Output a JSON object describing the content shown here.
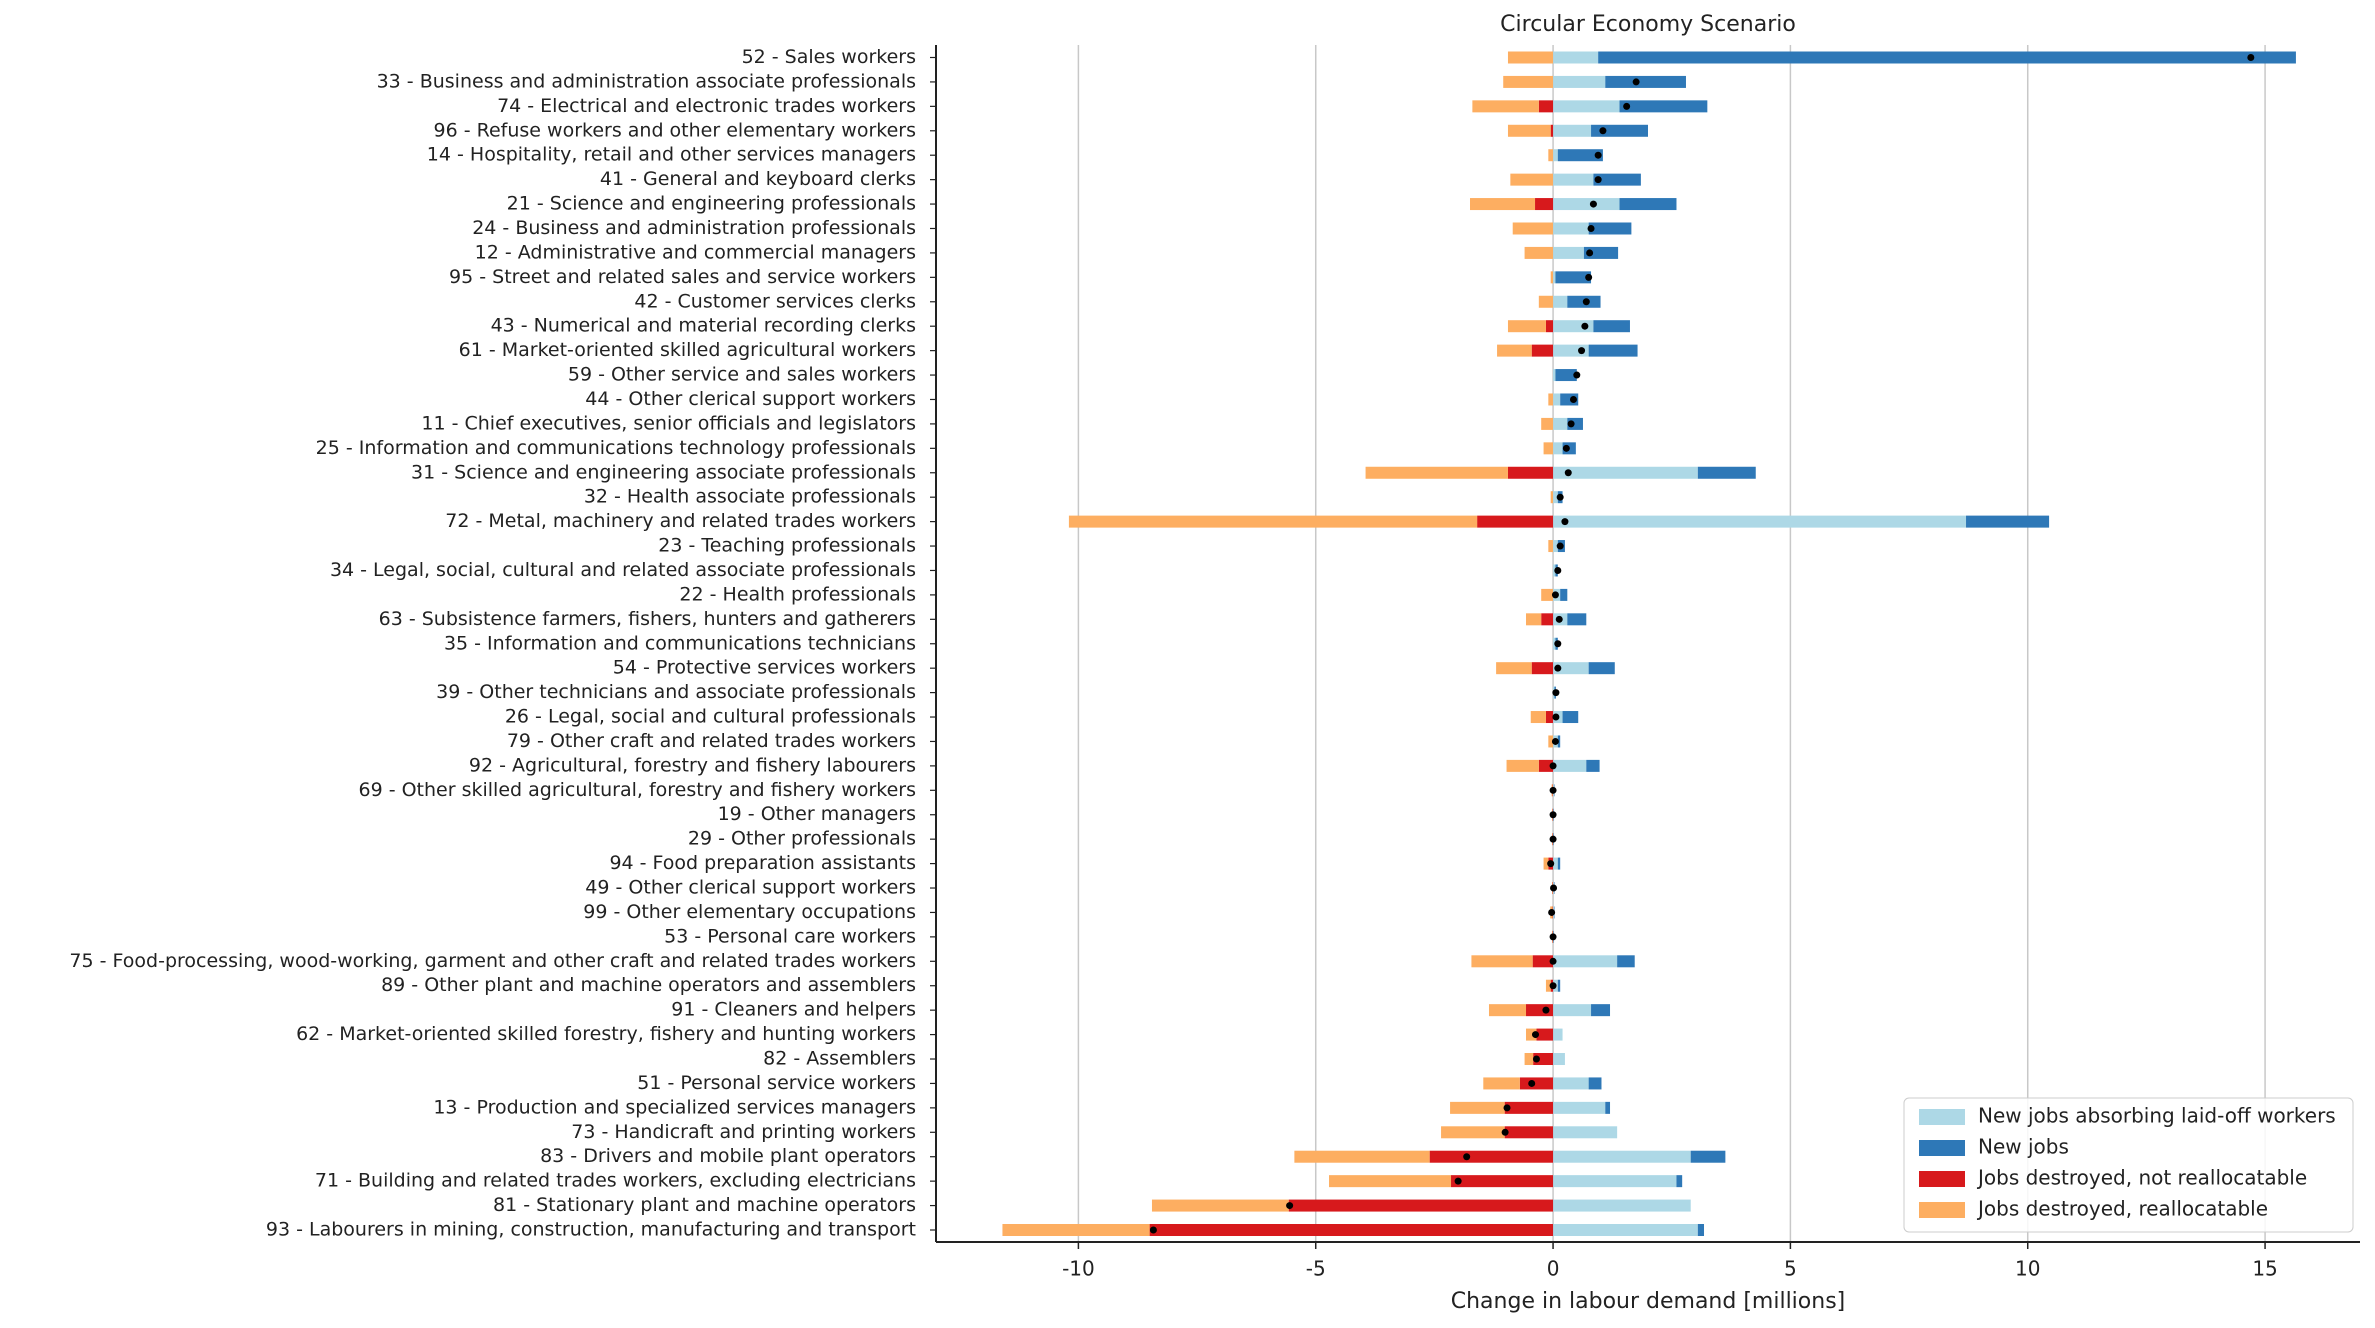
{
  "chart_data": {
    "type": "stacked-barh",
    "title": "Circular Economy Scenario",
    "xlabel": "Change in labour demand [millions]",
    "xlim": [
      -13,
      17
    ],
    "xticks": [
      -10,
      -5,
      0,
      5,
      10,
      15
    ],
    "grid": true,
    "legend_position": "lower right",
    "categories": [
      "52 - Sales workers",
      "33 - Business and administration associate professionals",
      "74 - Electrical and electronic trades workers",
      "96 - Refuse workers and other elementary workers",
      "14 - Hospitality, retail and other services managers",
      "41 - General and keyboard clerks",
      "21 - Science and engineering professionals",
      "24 - Business and administration professionals",
      "12 - Administrative and commercial managers",
      "95 - Street and related sales and service workers",
      "42 - Customer services clerks",
      "43 - Numerical and material recording clerks",
      "61 - Market-oriented skilled agricultural workers",
      "59 - Other service and sales workers",
      "44 - Other clerical support workers",
      "11 - Chief executives, senior officials and legislators",
      "25 - Information and communications technology professionals",
      "31 - Science and engineering associate professionals",
      "32 - Health associate professionals",
      "72 - Metal, machinery and related trades workers",
      "23 - Teaching professionals",
      "34 - Legal, social, cultural and related associate professionals",
      "22 - Health professionals",
      "63 - Subsistence farmers, fishers, hunters and gatherers",
      "35 - Information and communications technicians",
      "54 - Protective services workers",
      "39 - Other technicians and associate professionals",
      "26 - Legal, social and cultural professionals",
      "79 - Other craft and related trades workers",
      "92 - Agricultural, forestry and fishery labourers",
      "69 - Other skilled agricultural, forestry and fishery workers",
      "19 - Other managers",
      "29 - Other professionals",
      "94 - Food preparation assistants",
      "49 - Other clerical support workers",
      "99 - Other elementary occupations",
      "53 - Personal care workers",
      "75 - Food-processing, wood-working, garment and other craft and related trades workers",
      "89 - Other plant and machine operators and assemblers",
      "91 - Cleaners and helpers",
      "62 - Market-oriented skilled forestry, fishery and hunting workers",
      "82 - Assemblers",
      "51 - Personal service workers",
      "13 - Production and specialized services managers",
      "73 - Handicraft and printing workers",
      "83 - Drivers and mobile plant operators",
      "71 - Building and related trades workers, excluding electricians",
      "81 - Stationary plant and machine operators",
      "93 - Labourers in mining, construction, manufacturing and transport"
    ],
    "series": [
      {
        "name": "New jobs absorbing laid-off workers",
        "color": "#add8e6",
        "values": [
          0.95,
          1.1,
          1.4,
          0.8,
          0.1,
          0.85,
          1.4,
          0.75,
          0.65,
          0.05,
          0.3,
          0.85,
          0.75,
          0.05,
          0.15,
          0.3,
          0.2,
          3.05,
          0.1,
          8.7,
          0.1,
          0.05,
          0.15,
          0.3,
          0.05,
          0.75,
          0.03,
          0.2,
          0.1,
          0.7,
          0.02,
          0.01,
          0.01,
          0.1,
          0.02,
          0.02,
          0.01,
          1.35,
          0.1,
          0.8,
          0.2,
          0.25,
          0.75,
          1.1,
          1.35,
          2.9,
          2.6,
          2.9,
          3.05
        ]
      },
      {
        "name": "New jobs",
        "color": "#2e78b7",
        "values": [
          14.7,
          1.7,
          1.85,
          1.2,
          0.95,
          1.0,
          1.2,
          0.9,
          0.72,
          0.75,
          0.7,
          0.77,
          1.03,
          0.45,
          0.38,
          0.33,
          0.28,
          1.22,
          0.1,
          1.75,
          0.15,
          0.05,
          0.15,
          0.4,
          0.05,
          0.55,
          0.03,
          0.33,
          0.05,
          0.28,
          0.01,
          0.01,
          0.01,
          0.05,
          0.01,
          0.01,
          0.01,
          0.37,
          0.05,
          0.4,
          0,
          0,
          0.27,
          0.1,
          0,
          0.73,
          0.12,
          0,
          0.13
        ]
      },
      {
        "name": "Jobs destroyed, not reallocatable",
        "color": "#d7191c",
        "values": [
          0,
          0,
          -0.3,
          -0.05,
          0,
          0,
          -0.38,
          0,
          0,
          0,
          0,
          -0.15,
          -0.45,
          0,
          0,
          0,
          0,
          -0.95,
          0,
          -1.6,
          0,
          0,
          0,
          -0.25,
          0,
          -0.45,
          0,
          -0.15,
          0,
          -0.3,
          -0.01,
          -0.01,
          -0.01,
          -0.1,
          -0.01,
          -0.01,
          -0.01,
          -0.43,
          -0.05,
          -0.57,
          -0.35,
          -0.42,
          -0.7,
          -1.02,
          -1.02,
          -2.6,
          -2.15,
          -5.57,
          -8.5
        ]
      },
      {
        "name": "Jobs destroyed, reallocatable",
        "color": "#fdae61",
        "values": [
          -0.95,
          -1.05,
          -1.4,
          -0.9,
          -0.1,
          -0.9,
          -1.37,
          -0.85,
          -0.6,
          -0.05,
          -0.3,
          -0.8,
          -0.73,
          0,
          -0.1,
          -0.25,
          -0.2,
          -3.0,
          -0.05,
          -8.6,
          -0.1,
          0,
          -0.25,
          -0.32,
          0,
          -0.75,
          0,
          -0.32,
          -0.1,
          -0.68,
          -0.02,
          -0.01,
          -0.01,
          -0.1,
          -0.01,
          -0.05,
          -0.01,
          -1.29,
          -0.1,
          -0.78,
          -0.22,
          -0.18,
          -0.77,
          -1.15,
          -1.34,
          -2.85,
          -2.57,
          -2.88,
          -3.1
        ]
      }
    ]
  }
}
